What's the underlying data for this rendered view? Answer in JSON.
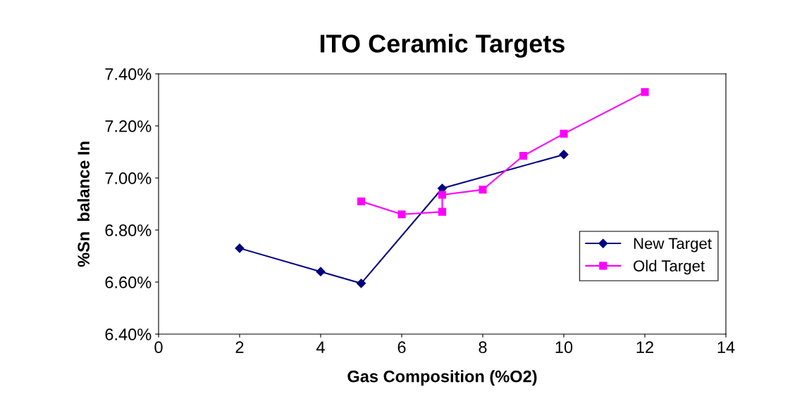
{
  "chart_data": {
    "type": "line",
    "title": "ITO Ceramic Targets",
    "xlabel": "Gas Composition (%O2)",
    "ylabel": "%Sn  balance In",
    "series": [
      {
        "name": "New Target",
        "color": "#000080",
        "marker": "diamond",
        "x": [
          2,
          4,
          5,
          7,
          10
        ],
        "values": [
          6.73,
          6.64,
          6.595,
          6.96,
          7.09
        ]
      },
      {
        "name": "Old Target",
        "color": "#ff00ff",
        "marker": "square",
        "x": [
          5,
          6,
          7,
          7,
          8,
          9,
          10,
          12
        ],
        "values": [
          6.91,
          6.86,
          6.87,
          6.935,
          6.955,
          7.085,
          7.17,
          7.33
        ]
      }
    ],
    "xlim": [
      0,
      14
    ],
    "xticks": [
      0,
      2,
      4,
      6,
      8,
      10,
      12,
      14
    ],
    "ylim": [
      6.4,
      7.4
    ],
    "yticks": [
      {
        "value": 6.4,
        "label": "6.40%"
      },
      {
        "value": 6.6,
        "label": "6.60%"
      },
      {
        "value": 6.8,
        "label": "6.80%"
      },
      {
        "value": 7.0,
        "label": "7.00%"
      },
      {
        "value": 7.2,
        "label": "7.20%"
      },
      {
        "value": 7.4,
        "label": "7.40%"
      }
    ],
    "grid": false,
    "legend": "right",
    "line_style": "solid"
  }
}
